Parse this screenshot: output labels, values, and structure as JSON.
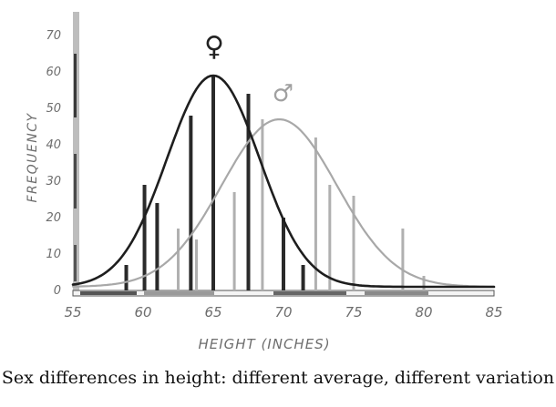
{
  "chart_data": {
    "type": "bar",
    "xlabel": "HEIGHT (INCHES)",
    "ylabel": "FREQUENCY",
    "xlim": [
      55,
      85
    ],
    "ylim": [
      0,
      75
    ],
    "x_ticks": [
      "55",
      "60",
      "65",
      "70",
      "75",
      "80",
      "85"
    ],
    "y_ticks": [
      "0",
      "10",
      "20",
      "30",
      "40",
      "50",
      "60",
      "70"
    ],
    "grid": false,
    "series": [
      {
        "name": "♀",
        "color": "#2a2a2a",
        "bars": [
          {
            "x": 58.8,
            "y": 7
          },
          {
            "x": 60.1,
            "y": 29
          },
          {
            "x": 61.0,
            "y": 24
          },
          {
            "x": 63.4,
            "y": 48
          },
          {
            "x": 65.0,
            "y": 59
          },
          {
            "x": 67.5,
            "y": 54
          },
          {
            "x": 70.0,
            "y": 20
          },
          {
            "x": 71.4,
            "y": 7
          }
        ],
        "curve": {
          "mean": 65,
          "peak": 59,
          "sd": 3.3
        }
      },
      {
        "name": "♂",
        "color": "#b0b0b0",
        "bars": [
          {
            "x": 62.5,
            "y": 17
          },
          {
            "x": 63.8,
            "y": 14
          },
          {
            "x": 66.5,
            "y": 27
          },
          {
            "x": 68.5,
            "y": 47
          },
          {
            "x": 72.3,
            "y": 42
          },
          {
            "x": 73.3,
            "y": 29
          },
          {
            "x": 75.0,
            "y": 26
          },
          {
            "x": 78.5,
            "y": 17
          },
          {
            "x": 80.0,
            "y": 4
          }
        ],
        "curve": {
          "mean": 69.7,
          "peak": 47,
          "sd": 4.1
        }
      }
    ]
  },
  "caption": "Sex differences in height: different average, different variation"
}
